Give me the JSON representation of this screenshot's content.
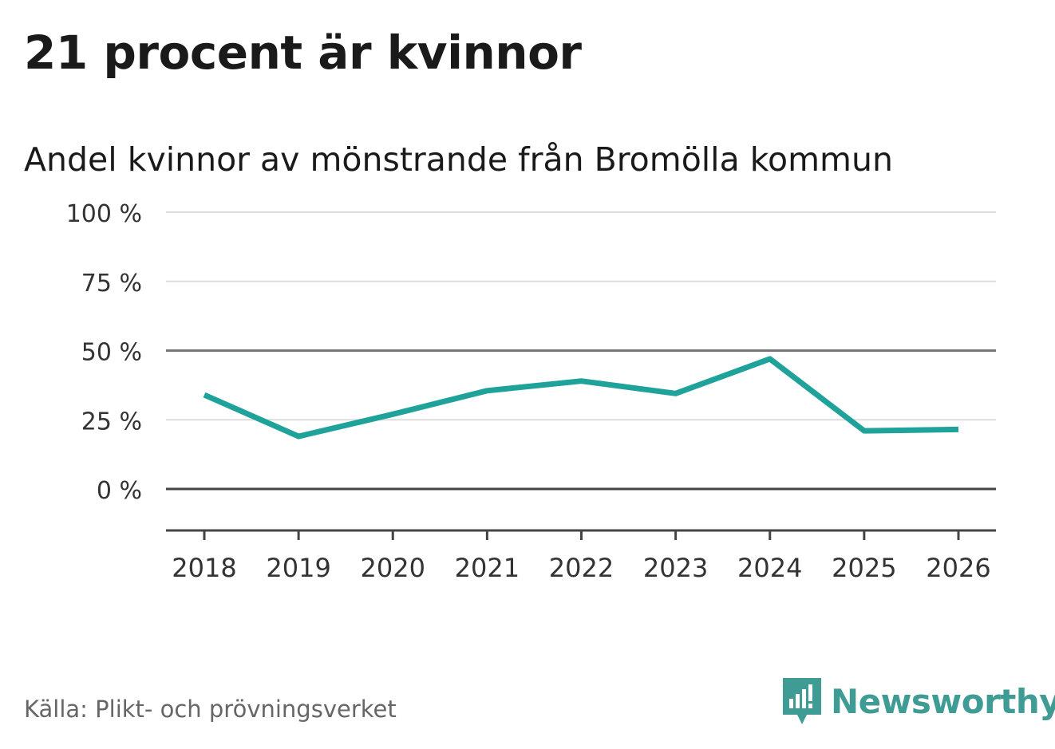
{
  "title": "21 procent är kvinnor",
  "subtitle": "Andel kvinnor av mönstrande från Bromölla kommun",
  "source": "Källa: Plikt- och prövningsverket",
  "brand": {
    "name": "Newsworthy",
    "icon": "newsworthy-logo-icon",
    "color": "#3f9c95"
  },
  "colors": {
    "line": "#1fa29a",
    "grid": "#dddddd",
    "axis": "#444444",
    "text": "#333333"
  },
  "chart_data": {
    "type": "line",
    "title": "21 procent är kvinnor",
    "subtitle": "Andel kvinnor av mönstrande från Bromölla kommun",
    "xlabel": "",
    "ylabel": "",
    "categories": [
      "2018",
      "2019",
      "2020",
      "2021",
      "2022",
      "2023",
      "2024",
      "2025",
      "2026"
    ],
    "series": [
      {
        "values": [
          34,
          19,
          27,
          35.5,
          39,
          34.5,
          47,
          21,
          21.5
        ]
      }
    ],
    "yticks": [
      0,
      25,
      50,
      75,
      100
    ],
    "ytick_labels": [
      "0 %",
      "25 %",
      "50 %",
      "75 %",
      "100 %"
    ],
    "ylim": [
      -15,
      100
    ],
    "grid": true,
    "legend": "none"
  }
}
